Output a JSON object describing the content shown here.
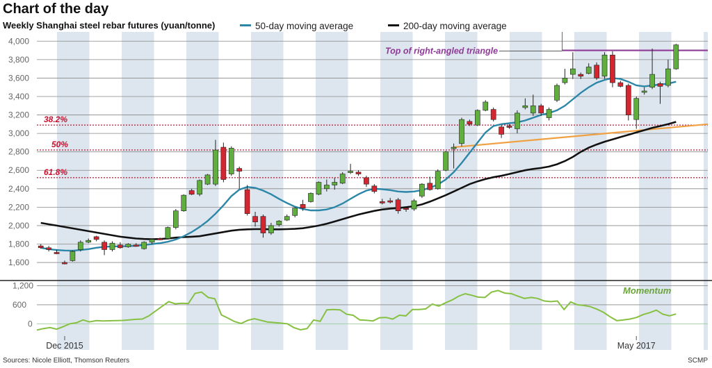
{
  "header": {
    "title": "Chart of the day",
    "subtitle": "Weekly Shanghai steel rebar futures (yuan/tonne)"
  },
  "legend": [
    {
      "label": "50-day moving average",
      "color": "#2b86a8"
    },
    {
      "label": "200-day moving average",
      "color": "#111111"
    }
  ],
  "footer": {
    "source": "Sources: Nicole Elliott, Thomson Reuters",
    "credit": "SCMP"
  },
  "colors": {
    "up": "#5fae3e",
    "down": "#d22630",
    "band": "#dde6ee",
    "fib": "#c8102e",
    "triangle_top": "#8e3a96",
    "trend": "#f0a040",
    "momentum": "#86c040"
  },
  "chart_data": [
    {
      "type": "candlestick",
      "ylim": [
        1450,
        4100
      ],
      "yticks": [
        1600,
        1800,
        2000,
        2200,
        2400,
        2600,
        2800,
        3000,
        3200,
        3400,
        3600,
        3800,
        4000
      ],
      "ytick_labels": [
        "1,600",
        "1,800",
        "2,000",
        "2,200",
        "2,400",
        "2,600",
        "2,800",
        "3,000",
        "3,200",
        "3,400",
        "3,600",
        "3,800",
        "4,000"
      ],
      "x_labels": [
        {
          "index": 3,
          "label": "Dec 2015"
        },
        {
          "index": 75,
          "label": "May 2017"
        }
      ],
      "grid": true,
      "candles": [
        {
          "o": 1780,
          "h": 1800,
          "l": 1750,
          "c": 1760
        },
        {
          "o": 1760,
          "h": 1780,
          "l": 1720,
          "c": 1740
        },
        {
          "o": 1710,
          "h": 1740,
          "l": 1690,
          "c": 1700
        },
        {
          "o": 1600,
          "h": 1620,
          "l": 1580,
          "c": 1590
        },
        {
          "o": 1620,
          "h": 1730,
          "l": 1610,
          "c": 1720
        },
        {
          "o": 1740,
          "h": 1840,
          "l": 1720,
          "c": 1820
        },
        {
          "o": 1820,
          "h": 1860,
          "l": 1810,
          "c": 1840
        },
        {
          "o": 1880,
          "h": 1890,
          "l": 1830,
          "c": 1850
        },
        {
          "o": 1820,
          "h": 1840,
          "l": 1680,
          "c": 1740
        },
        {
          "o": 1740,
          "h": 1830,
          "l": 1720,
          "c": 1810
        },
        {
          "o": 1790,
          "h": 1820,
          "l": 1750,
          "c": 1760
        },
        {
          "o": 1770,
          "h": 1810,
          "l": 1760,
          "c": 1800
        },
        {
          "o": 1790,
          "h": 1810,
          "l": 1770,
          "c": 1785
        },
        {
          "o": 1750,
          "h": 1830,
          "l": 1740,
          "c": 1820
        },
        {
          "o": 1820,
          "h": 1860,
          "l": 1800,
          "c": 1850
        },
        {
          "o": 1860,
          "h": 1870,
          "l": 1840,
          "c": 1850
        },
        {
          "o": 1860,
          "h": 1990,
          "l": 1850,
          "c": 1980
        },
        {
          "o": 1980,
          "h": 2180,
          "l": 1960,
          "c": 2160
        },
        {
          "o": 2160,
          "h": 2340,
          "l": 2150,
          "c": 2330
        },
        {
          "o": 2380,
          "h": 2400,
          "l": 2330,
          "c": 2340
        },
        {
          "o": 2340,
          "h": 2500,
          "l": 2320,
          "c": 2490
        },
        {
          "o": 2450,
          "h": 2560,
          "l": 2440,
          "c": 2550
        },
        {
          "o": 2450,
          "h": 2930,
          "l": 2430,
          "c": 2820
        },
        {
          "o": 2850,
          "h": 2900,
          "l": 2470,
          "c": 2500
        },
        {
          "o": 2560,
          "h": 2860,
          "l": 2540,
          "c": 2840
        },
        {
          "o": 2620,
          "h": 2640,
          "l": 2400,
          "c": 2590
        },
        {
          "o": 2390,
          "h": 2440,
          "l": 2110,
          "c": 2130
        },
        {
          "o": 2100,
          "h": 2150,
          "l": 1990,
          "c": 2040
        },
        {
          "o": 2100,
          "h": 2120,
          "l": 1870,
          "c": 1920
        },
        {
          "o": 1920,
          "h": 2030,
          "l": 1900,
          "c": 2000
        },
        {
          "o": 2010,
          "h": 2060,
          "l": 1990,
          "c": 2050
        },
        {
          "o": 2060,
          "h": 2120,
          "l": 2050,
          "c": 2100
        },
        {
          "o": 2110,
          "h": 2200,
          "l": 2090,
          "c": 2190
        },
        {
          "o": 2230,
          "h": 2280,
          "l": 2160,
          "c": 2190
        },
        {
          "o": 2260,
          "h": 2360,
          "l": 2250,
          "c": 2350
        },
        {
          "o": 2340,
          "h": 2480,
          "l": 2330,
          "c": 2470
        },
        {
          "o": 2400,
          "h": 2500,
          "l": 2370,
          "c": 2440
        },
        {
          "o": 2440,
          "h": 2520,
          "l": 2390,
          "c": 2470
        },
        {
          "o": 2460,
          "h": 2580,
          "l": 2450,
          "c": 2560
        },
        {
          "o": 2580,
          "h": 2670,
          "l": 2560,
          "c": 2590
        },
        {
          "o": 2580,
          "h": 2600,
          "l": 2540,
          "c": 2560
        },
        {
          "o": 2520,
          "h": 2540,
          "l": 2420,
          "c": 2450
        },
        {
          "o": 2430,
          "h": 2450,
          "l": 2350,
          "c": 2370
        },
        {
          "o": 2260,
          "h": 2290,
          "l": 2230,
          "c": 2250
        },
        {
          "o": 2270,
          "h": 2300,
          "l": 2240,
          "c": 2260
        },
        {
          "o": 2280,
          "h": 2300,
          "l": 2130,
          "c": 2160
        },
        {
          "o": 2190,
          "h": 2210,
          "l": 2150,
          "c": 2180
        },
        {
          "o": 2180,
          "h": 2290,
          "l": 2160,
          "c": 2270
        },
        {
          "o": 2320,
          "h": 2460,
          "l": 2300,
          "c": 2450
        },
        {
          "o": 2460,
          "h": 2530,
          "l": 2380,
          "c": 2390
        },
        {
          "o": 2400,
          "h": 2610,
          "l": 2390,
          "c": 2590
        },
        {
          "o": 2600,
          "h": 2810,
          "l": 2590,
          "c": 2800
        },
        {
          "o": 2840,
          "h": 2890,
          "l": 2620,
          "c": 2850
        },
        {
          "o": 2890,
          "h": 3170,
          "l": 2860,
          "c": 3150
        },
        {
          "o": 3130,
          "h": 3150,
          "l": 3080,
          "c": 3100
        },
        {
          "o": 3090,
          "h": 3260,
          "l": 3080,
          "c": 3250
        },
        {
          "o": 3250,
          "h": 3360,
          "l": 3240,
          "c": 3340
        },
        {
          "o": 3260,
          "h": 3280,
          "l": 3130,
          "c": 3150
        },
        {
          "o": 3070,
          "h": 3090,
          "l": 2950,
          "c": 2990
        },
        {
          "o": 3080,
          "h": 3100,
          "l": 3050,
          "c": 3070
        },
        {
          "o": 3050,
          "h": 3250,
          "l": 3000,
          "c": 3220
        },
        {
          "o": 3280,
          "h": 3380,
          "l": 3260,
          "c": 3300
        },
        {
          "o": 3220,
          "h": 3420,
          "l": 3190,
          "c": 3300
        },
        {
          "o": 3300,
          "h": 3320,
          "l": 3190,
          "c": 3220
        },
        {
          "o": 3170,
          "h": 3280,
          "l": 3140,
          "c": 3260
        },
        {
          "o": 3360,
          "h": 3540,
          "l": 3340,
          "c": 3520
        },
        {
          "o": 3550,
          "h": 3700,
          "l": 3530,
          "c": 3600
        },
        {
          "o": 3640,
          "h": 3880,
          "l": 3590,
          "c": 3700
        },
        {
          "o": 3640,
          "h": 3660,
          "l": 3590,
          "c": 3620
        },
        {
          "o": 3650,
          "h": 3760,
          "l": 3640,
          "c": 3720
        },
        {
          "o": 3740,
          "h": 3770,
          "l": 3580,
          "c": 3600
        },
        {
          "o": 3620,
          "h": 3880,
          "l": 3590,
          "c": 3850
        },
        {
          "o": 3850,
          "h": 3890,
          "l": 3500,
          "c": 3550
        },
        {
          "o": 3550,
          "h": 3570,
          "l": 3500,
          "c": 3510
        },
        {
          "o": 3520,
          "h": 3540,
          "l": 3140,
          "c": 3200
        },
        {
          "o": 3150,
          "h": 3400,
          "l": 3050,
          "c": 3380
        },
        {
          "o": 3450,
          "h": 3500,
          "l": 3420,
          "c": 3460
        },
        {
          "o": 3500,
          "h": 3920,
          "l": 3480,
          "c": 3640
        },
        {
          "o": 3540,
          "h": 3560,
          "l": 3320,
          "c": 3510
        },
        {
          "o": 3520,
          "h": 3800,
          "l": 3500,
          "c": 3700
        },
        {
          "o": 3700,
          "h": 3970,
          "l": 3690,
          "c": 3960
        }
      ],
      "ma50": [
        1760,
        1745,
        1735,
        1730,
        1728,
        1735,
        1745,
        1760,
        1770,
        1775,
        1775,
        1778,
        1782,
        1790,
        1800,
        1810,
        1825,
        1850,
        1885,
        1930,
        1985,
        2050,
        2130,
        2220,
        2320,
        2390,
        2420,
        2410,
        2380,
        2340,
        2290,
        2245,
        2205,
        2180,
        2165,
        2165,
        2175,
        2200,
        2240,
        2290,
        2340,
        2380,
        2400,
        2395,
        2385,
        2370,
        2365,
        2370,
        2385,
        2410,
        2445,
        2500,
        2580,
        2680,
        2790,
        2900,
        3010,
        3080,
        3100,
        3110,
        3120,
        3140,
        3170,
        3200,
        3220,
        3250,
        3300,
        3370,
        3440,
        3500,
        3550,
        3580,
        3600,
        3590,
        3560,
        3520,
        3510,
        3520,
        3530,
        3540,
        3560
      ],
      "ma200": [
        2030,
        2015,
        2000,
        1985,
        1970,
        1955,
        1940,
        1925,
        1910,
        1895,
        1880,
        1870,
        1860,
        1855,
        1852,
        1855,
        1860,
        1870,
        1875,
        1880,
        1885,
        1900,
        1915,
        1930,
        1945,
        1955,
        1960,
        1962,
        1962,
        1960,
        1960,
        1962,
        1965,
        1972,
        1985,
        2000,
        2020,
        2045,
        2070,
        2095,
        2120,
        2140,
        2160,
        2175,
        2185,
        2190,
        2200,
        2210,
        2230,
        2260,
        2295,
        2330,
        2370,
        2410,
        2450,
        2480,
        2505,
        2525,
        2540,
        2560,
        2580,
        2600,
        2615,
        2625,
        2640,
        2665,
        2700,
        2745,
        2800,
        2845,
        2880,
        2910,
        2935,
        2960,
        2985,
        3010,
        3035,
        3060,
        3080,
        3100,
        3125
      ],
      "fib_levels": [
        {
          "label": "38.2%",
          "value": 3090
        },
        {
          "label": "50%",
          "value": 2820
        },
        {
          "label": "61.8%",
          "value": 2520
        }
      ],
      "triangle_top": {
        "label": "Top of right-angled triangle",
        "value": 3900,
        "from_index": 66
      },
      "trend_line": {
        "from_index": 52,
        "from_value": 2850,
        "to_index": 84,
        "to_value": 3100
      }
    },
    {
      "type": "line",
      "series": [
        {
          "name": "Momentum",
          "values": [
            -200,
            -150,
            -120,
            -170,
            -90,
            0,
            30,
            120,
            60,
            100,
            90,
            95,
            100,
            105,
            120,
            140,
            150,
            250,
            400,
            550,
            700,
            630,
            650,
            640,
            960,
            1000,
            830,
            790,
            280,
            180,
            70,
            10,
            110,
            160,
            110,
            55,
            40,
            20,
            0,
            -120,
            -190,
            -150,
            120,
            80,
            440,
            450,
            440,
            300,
            270,
            120,
            110,
            90,
            190,
            200,
            150,
            270,
            250,
            450,
            450,
            470,
            620,
            560,
            660,
            750,
            870,
            950,
            900,
            840,
            830,
            1000,
            1050,
            970,
            950,
            870,
            800,
            830,
            800,
            720,
            700,
            720,
            450,
            690,
            600,
            580,
            540,
            460,
            360,
            220,
            100,
            120,
            150,
            200,
            290,
            350,
            430,
            300,
            250,
            310
          ]
        }
      ],
      "ylim": [
        -300,
        1300
      ],
      "yticks": [
        0,
        600,
        1200
      ],
      "ytick_labels": [
        "0",
        "600",
        "1,200"
      ]
    }
  ]
}
